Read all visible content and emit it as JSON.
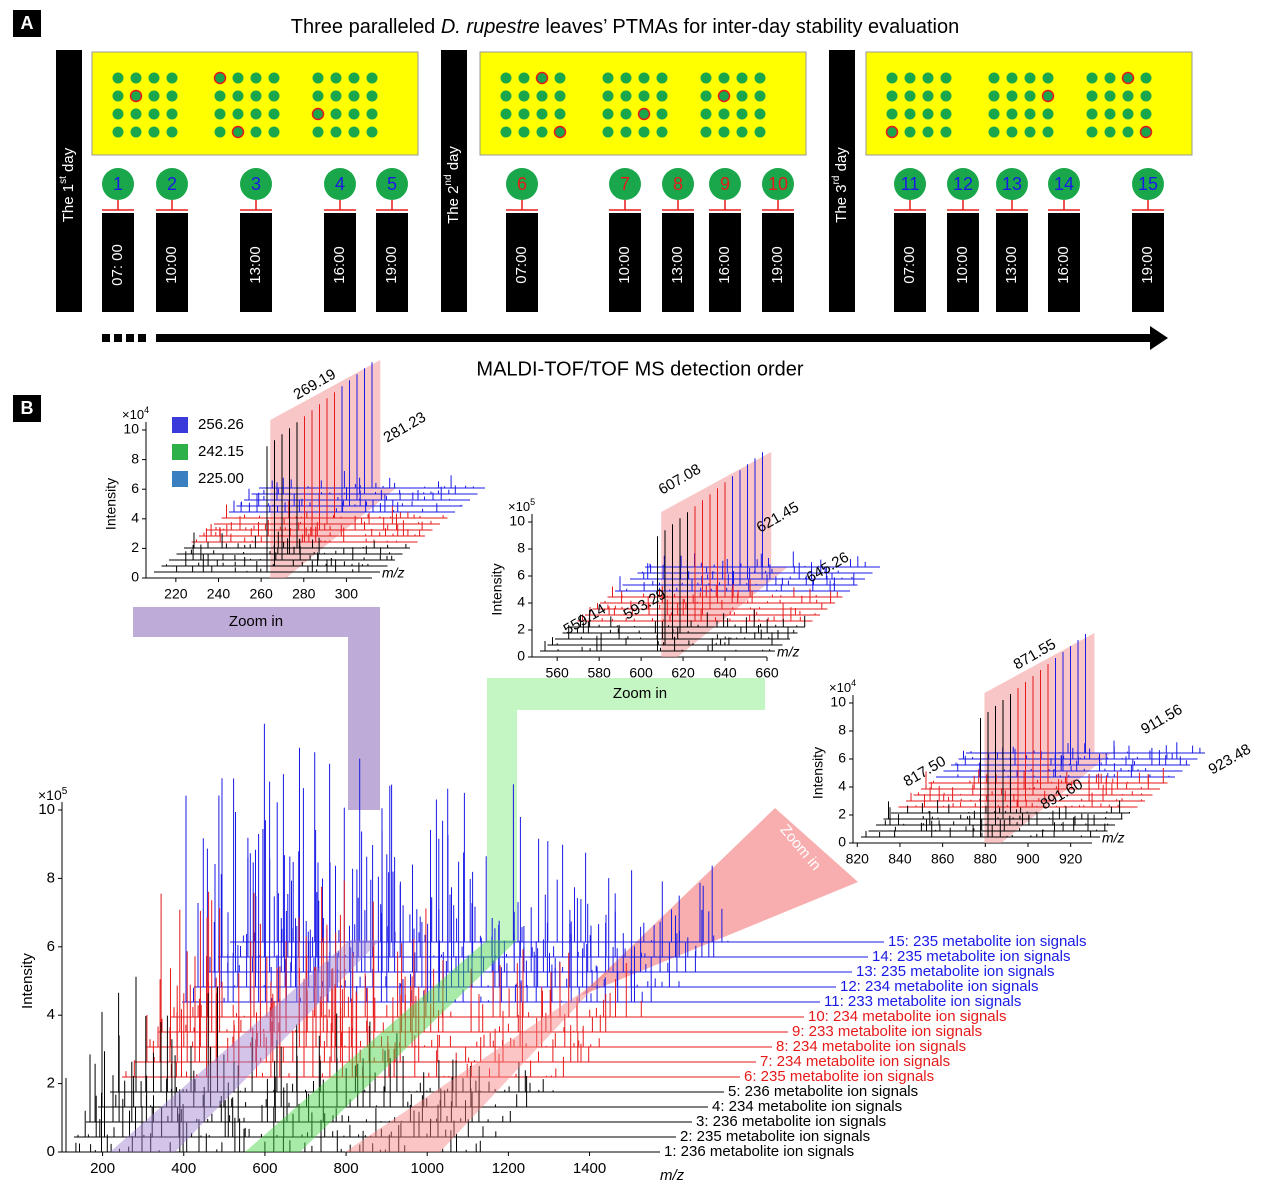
{
  "panel_a": {
    "label": "A",
    "title": {
      "pre": "Three paralleled ",
      "italic": "D. rupestre",
      "post": " leaves’ PTMAs for inter-day stability evaluation"
    },
    "days": [
      {
        "pre": "The 1",
        "sup": "st",
        "post": " day"
      },
      {
        "pre": "The 2",
        "sup": "nd",
        "post": " day"
      },
      {
        "pre": "The 3",
        "sup": "rd",
        "post": " day"
      }
    ],
    "samples": [
      {
        "number": 1,
        "time": "07: 00",
        "color": "#1a1ae6"
      },
      {
        "number": 2,
        "time": "10:00",
        "color": "#1a1ae6"
      },
      {
        "number": 3,
        "time": "13:00",
        "color": "#1a1ae6"
      },
      {
        "number": 4,
        "time": "16:00",
        "color": "#1a1ae6"
      },
      {
        "number": 5,
        "time": "19:00",
        "color": "#1a1ae6"
      },
      {
        "number": 6,
        "time": "07:00",
        "color": "#e61a1a"
      },
      {
        "number": 7,
        "time": "10:00",
        "color": "#e61a1a"
      },
      {
        "number": 8,
        "time": "13:00",
        "color": "#e61a1a"
      },
      {
        "number": 9,
        "time": "16:00",
        "color": "#e61a1a"
      },
      {
        "number": 10,
        "time": "19:00",
        "color": "#e61a1a"
      },
      {
        "number": 11,
        "time": "07:00",
        "color": "#1a1ae6"
      },
      {
        "number": 12,
        "time": "10:00",
        "color": "#1a1ae6"
      },
      {
        "number": 13,
        "time": "13:00",
        "color": "#1a1ae6"
      },
      {
        "number": 14,
        "time": "16:00",
        "color": "#1a1ae6"
      },
      {
        "number": 15,
        "time": "19:00",
        "color": "#1a1ae6"
      }
    ],
    "arrow_label": "MALDI-TOF/TOF MS detection order"
  },
  "panel_b": {
    "label": "B",
    "main": {
      "y_label": "Intensity",
      "y_exponent": {
        "base": "×10",
        "power": "5"
      },
      "x_label": "m/z",
      "xlim": [
        100,
        1475
      ],
      "ylim": [
        0,
        10
      ],
      "xticks": [
        200,
        400,
        600,
        800,
        1000,
        1200,
        1400
      ],
      "yticks": [
        0,
        2,
        4,
        6,
        8,
        10
      ],
      "signal_labels": [
        {
          "text": "1: 236 metabolite ion signals",
          "color": "#000000"
        },
        {
          "text": "2: 235 metabolite ion signals",
          "color": "#000000"
        },
        {
          "text": "3: 236 metabolite ion signals",
          "color": "#000000"
        },
        {
          "text": "4: 234 metabolite ion signals",
          "color": "#000000"
        },
        {
          "text": "5: 236 metabolite ion signals",
          "color": "#000000"
        },
        {
          "text": "6: 235 metabolite ion signals",
          "color": "#e61a1a"
        },
        {
          "text": "7: 234 metabolite ion signals",
          "color": "#e61a1a"
        },
        {
          "text": "8: 234 metabolite ion signals",
          "color": "#e61a1a"
        },
        {
          "text": "9: 233 metabolite ion signals",
          "color": "#e61a1a"
        },
        {
          "text": "10: 234 metabolite ion signals",
          "color": "#e61a1a"
        },
        {
          "text": "11: 233 metabolite ion signals",
          "color": "#1a1ae6"
        },
        {
          "text": "12: 234 metabolite ion signals",
          "color": "#1a1ae6"
        },
        {
          "text": "13: 235 metabolite ion signals",
          "color": "#1a1ae6"
        },
        {
          "text": "14: 235 metabolite ion signals",
          "color": "#1a1ae6"
        },
        {
          "text": "15: 235 metabolite ion signals",
          "color": "#1a1ae6"
        }
      ],
      "zoom_labels": [
        "Zoom in",
        "Zoom in",
        "Zoom in"
      ]
    },
    "insets": [
      {
        "y_label": "Intensity",
        "y_exponent": {
          "base": "×10",
          "power": "4"
        },
        "x_label": "m/z",
        "xlim": [
          206,
          312
        ],
        "ylim": [
          0,
          10
        ],
        "xticks": [
          220,
          240,
          260,
          280,
          300
        ],
        "yticks": [
          0,
          2,
          4,
          6,
          8,
          10
        ],
        "legend": [
          {
            "name": "256.26",
            "color": "#3b3bdb"
          },
          {
            "name": "242.15",
            "color": "#2db04a"
          },
          {
            "name": "225.00",
            "color": "#3a7fc0"
          }
        ],
        "peak_labels": [
          "269.19",
          "281.23"
        ]
      },
      {
        "y_label": "Intensity",
        "y_exponent": {
          "base": "×10",
          "power": "5"
        },
        "x_label": "m/z",
        "xlim": [
          548,
          660
        ],
        "ylim": [
          0,
          10
        ],
        "xticks": [
          560,
          580,
          600,
          620,
          640,
          660
        ],
        "yticks": [
          0,
          2,
          4,
          6,
          8,
          10
        ],
        "peak_labels": [
          "607.08",
          "621.45",
          "645.26",
          "559.14",
          "593.29"
        ]
      },
      {
        "y_label": "Intensity",
        "y_exponent": {
          "base": "×10",
          "power": "4"
        },
        "x_label": "m/z",
        "xlim": [
          818,
          930
        ],
        "ylim": [
          0,
          10
        ],
        "xticks": [
          820,
          840,
          860,
          880,
          900,
          920
        ],
        "yticks": [
          0,
          2,
          4,
          6,
          8,
          10
        ],
        "peak_labels": [
          "871.55",
          "911.56",
          "923.48",
          "817.50",
          "891.60"
        ]
      }
    ]
  }
}
